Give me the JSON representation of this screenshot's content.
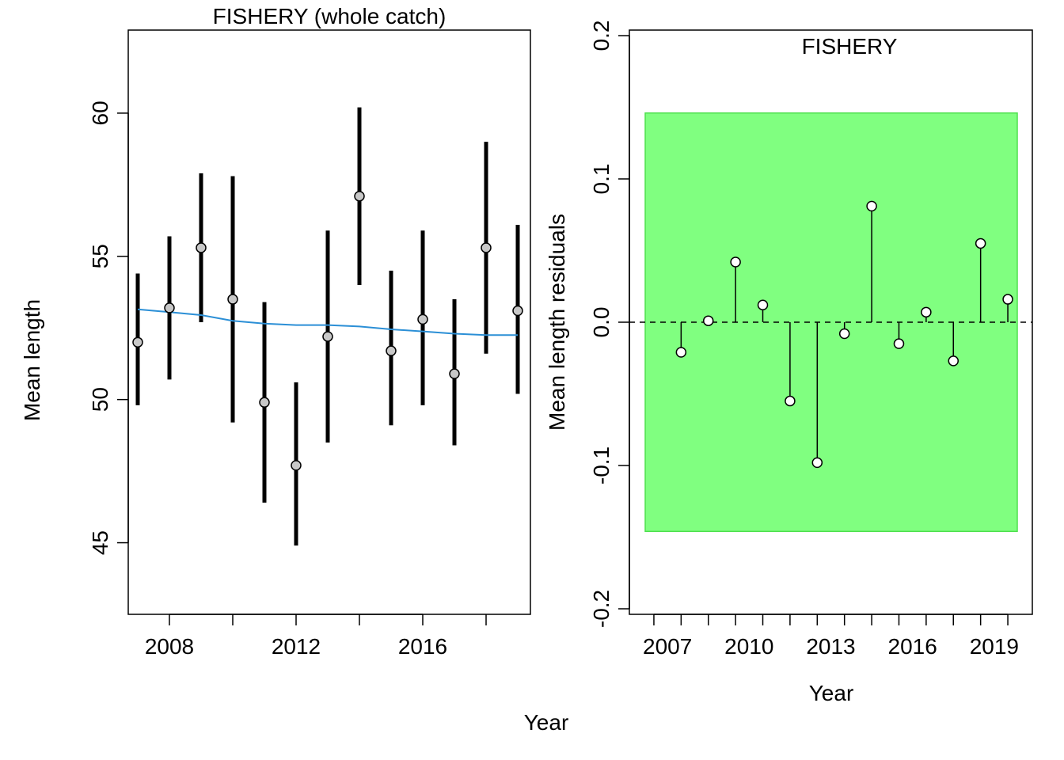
{
  "figure": {
    "shared_xlabel": "Year"
  },
  "chart_data": [
    {
      "type": "scatter",
      "title": "FISHERY (whole catch)",
      "xlabel": "",
      "ylabel": "Mean length",
      "xlim": [
        2006.7,
        2019.4
      ],
      "ylim": [
        42.5,
        62.9
      ],
      "xticks": [
        2008,
        2012,
        2016
      ],
      "yticks": [
        45,
        50,
        55,
        60
      ],
      "x": [
        2007,
        2008,
        2009,
        2010,
        2011,
        2012,
        2013,
        2014,
        2015,
        2016,
        2017,
        2018,
        2019
      ],
      "y": [
        52.0,
        53.2,
        55.3,
        53.5,
        49.9,
        47.7,
        52.2,
        57.1,
        51.7,
        52.8,
        50.9,
        55.3,
        53.1
      ],
      "lower": [
        49.8,
        50.7,
        52.7,
        49.2,
        46.4,
        44.9,
        48.5,
        54.0,
        49.1,
        49.8,
        48.4,
        51.6,
        50.2
      ],
      "upper": [
        54.4,
        55.7,
        57.9,
        57.8,
        53.4,
        50.6,
        55.9,
        60.2,
        54.5,
        55.9,
        53.5,
        59.0,
        56.1
      ],
      "fit": [
        53.15,
        53.05,
        52.95,
        52.75,
        52.65,
        52.6,
        52.6,
        52.55,
        52.45,
        52.38,
        52.3,
        52.25,
        52.25
      ],
      "colors": {
        "points": "#c8c8c8",
        "errorbars": "#000000",
        "fit": "#2b8fd6"
      }
    },
    {
      "type": "scatter",
      "title": "FISHERY",
      "xlabel": "Year",
      "ylabel": "Mean length residuals",
      "xlim": [
        2005.6,
        2020.4
      ],
      "ylim": [
        -0.2,
        0.2
      ],
      "xticks": [
        2007,
        2010,
        2013,
        2016,
        2019
      ],
      "yticks": [
        -0.2,
        -0.1,
        0.0,
        0.1,
        0.2
      ],
      "ytick_labels": [
        "-0.2",
        "-0.1",
        "0.0",
        "0.1",
        "0.2"
      ],
      "x": [
        2007.5,
        2008.5,
        2009.5,
        2010.5,
        2011.5,
        2012.5,
        2013.5,
        2014.5,
        2015.5,
        2016.5,
        2017.5,
        2018.5,
        2019.5
      ],
      "y": [
        -0.021,
        0.001,
        0.042,
        0.012,
        -0.055,
        -0.098,
        -0.008,
        0.081,
        -0.015,
        0.007,
        -0.027,
        0.055,
        0.016
      ],
      "band": [
        -0.146,
        0.146
      ],
      "reference_line": 0.0,
      "colors": {
        "band": "#80ff80",
        "band_edge": "#4ee04e",
        "points": "#ffffff"
      }
    }
  ]
}
